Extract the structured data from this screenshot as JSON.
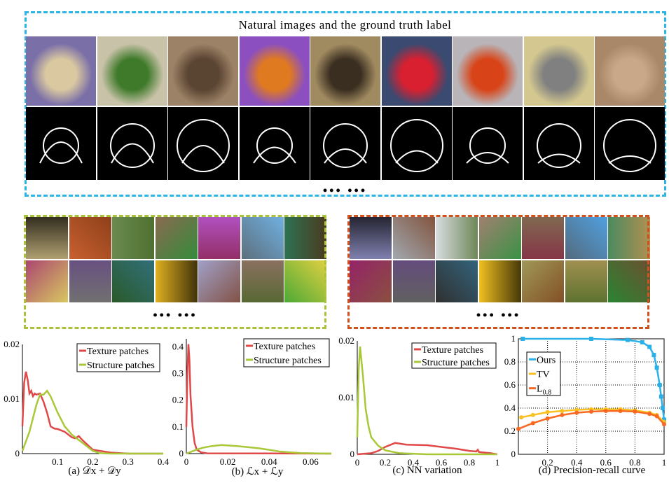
{
  "top_panel": {
    "title": "Natural images and the ground truth label",
    "border_color": "#2bb5e6",
    "ellipsis": "••• •••",
    "image_colors": [
      [
        "#7b6fa8",
        "#d9c8a0"
      ],
      [
        "#c8c2a8",
        "#3f7a2a"
      ],
      [
        "#9c8266",
        "#5a4432"
      ],
      [
        "#8b4fc0",
        "#e07a20"
      ],
      [
        "#a08a60",
        "#3a2e20"
      ],
      [
        "#3a4a70",
        "#d82030"
      ],
      [
        "#b8b4b8",
        "#d84418"
      ],
      [
        "#d4c890",
        "#808080"
      ],
      [
        "#a88868",
        "#c8a888"
      ]
    ]
  },
  "texture_panel": {
    "border_color": "#a9c23a",
    "ellipsis": "••• •••",
    "patch_colors": [
      "#b0a070",
      "#c86030",
      "#6a8a50",
      "#8a6a50",
      "#b050c0",
      "#70b0e0",
      "#4a3a20",
      "#d8c860",
      "#707070",
      "#2a5a2a",
      "#e0b020",
      "#a0a0c8",
      "#8a7060",
      "#e0d040"
    ]
  },
  "structure_panel": {
    "border_color": "#d2501c",
    "ellipsis": "••• •••",
    "patch_colors": [
      "#8080b0",
      "#a0a8b0",
      "#d8dce0",
      "#a08070",
      "#806850",
      "#50a0e0",
      "#b09050",
      "#8a5040",
      "#606060",
      "#303030",
      "#f0c020",
      "#a09858",
      "#a09050",
      "#6a5030"
    ]
  },
  "charts": [
    {
      "caption": "(a) 𝒟x + 𝒟y",
      "type": "line",
      "xlim": [
        0,
        0.4
      ],
      "ylim": [
        0,
        0.02
      ],
      "xticks": [
        "0.1",
        "0.2",
        "0.3",
        "0.4"
      ],
      "yticks": [
        "0",
        "0.01",
        "0.02"
      ],
      "series": [
        {
          "name": "Texture patches",
          "color": "#e04848",
          "x": [
            0,
            0.005,
            0.01,
            0.015,
            0.02,
            0.025,
            0.03,
            0.035,
            0.04,
            0.05,
            0.06,
            0.07,
            0.08,
            0.09,
            0.1,
            0.12,
            0.14,
            0.15,
            0.16,
            0.17,
            0.2,
            0.25,
            0.3,
            0.4
          ],
          "y": [
            0.005,
            0.013,
            0.015,
            0.0135,
            0.011,
            0.0115,
            0.0105,
            0.011,
            0.0108,
            0.011,
            0.0095,
            0.0075,
            0.005,
            0.0046,
            0.0045,
            0.004,
            0.003,
            0.0028,
            0.0032,
            0.0025,
            0.0007,
            0.0002,
            0,
            0
          ]
        },
        {
          "name": "Structure patches",
          "color": "#a8c838",
          "x": [
            0,
            0.02,
            0.04,
            0.05,
            0.06,
            0.07,
            0.08,
            0.1,
            0.12,
            0.14,
            0.16,
            0.18,
            0.2,
            0.22,
            0.25,
            0.4
          ],
          "y": [
            0.0005,
            0.004,
            0.009,
            0.0108,
            0.0108,
            0.0115,
            0.0105,
            0.0075,
            0.005,
            0.0035,
            0.0025,
            0.0015,
            0.0005,
            0.0001,
            0,
            0
          ]
        }
      ]
    },
    {
      "caption": "(b) ℒx + ℒy",
      "type": "line",
      "xlim": [
        0,
        0.07
      ],
      "ylim": [
        0,
        0.43
      ],
      "xticks": [
        "0",
        "0.02",
        "0.04",
        "0.06"
      ],
      "yticks": [
        "0",
        "0.1",
        "0.2",
        "0.3",
        "0.4"
      ],
      "series": [
        {
          "name": "Texture patches",
          "color": "#e04848",
          "x": [
            0,
            0.0005,
            0.001,
            0.0015,
            0.002,
            0.003,
            0.004,
            0.005,
            0.007,
            0.01,
            0.07
          ],
          "y": [
            0.1,
            0.3,
            0.41,
            0.35,
            0.22,
            0.1,
            0.04,
            0.015,
            0.005,
            0.001,
            0
          ]
        },
        {
          "name": "Structure patches",
          "color": "#a8c838",
          "x": [
            0,
            0.005,
            0.008,
            0.012,
            0.017,
            0.025,
            0.035,
            0.045,
            0.055,
            0.07
          ],
          "y": [
            0,
            0.015,
            0.022,
            0.028,
            0.032,
            0.028,
            0.02,
            0.008,
            0.002,
            0
          ]
        }
      ]
    },
    {
      "caption": "(c) NN variation",
      "type": "line",
      "xlim": [
        0,
        1
      ],
      "ylim": [
        0,
        0.02
      ],
      "xticks": [
        "0",
        "0.2",
        "0.4",
        "0.6",
        "0.8",
        "1"
      ],
      "yticks": [
        "0",
        "0.01",
        "0.02"
      ],
      "series": [
        {
          "name": "Texture patches",
          "color": "#e04848",
          "x": [
            0,
            0.1,
            0.15,
            0.2,
            0.27,
            0.3,
            0.35,
            0.5,
            0.6,
            0.7,
            0.8,
            0.85,
            0.86,
            0.87,
            0.95,
            1
          ],
          "y": [
            0,
            0.0002,
            0.0006,
            0.0013,
            0.002,
            0.0019,
            0.0017,
            0.0016,
            0.0013,
            0.001,
            0.0006,
            0.0005,
            0.0008,
            0.0004,
            0.0002,
            0
          ]
        },
        {
          "name": "Structure patches",
          "color": "#a8c838",
          "x": [
            0,
            0.01,
            0.02,
            0.04,
            0.06,
            0.08,
            0.1,
            0.15,
            0.2,
            0.3,
            0.5,
            1
          ],
          "y": [
            0.003,
            0.015,
            0.019,
            0.014,
            0.008,
            0.005,
            0.003,
            0.0015,
            0.0007,
            0.0002,
            0,
            0
          ]
        }
      ]
    },
    {
      "caption": "(d) Precision-recall curve",
      "type": "line",
      "xlim": [
        0,
        1
      ],
      "ylim": [
        0,
        1
      ],
      "grid": true,
      "xticks": [
        "0.2",
        "0.4",
        "0.6",
        "0.8",
        "1"
      ],
      "yticks": [
        "0",
        "0.2",
        "0.4",
        "0.6",
        "0.8",
        "1"
      ],
      "series": [
        {
          "name": "Ours",
          "color": "#2ab0e8",
          "marker": "square",
          "x": [
            0.03,
            0.5,
            0.75,
            0.85,
            0.9,
            0.93,
            0.95,
            0.97,
            0.98,
            0.99,
            1
          ],
          "y": [
            1,
            1,
            0.99,
            0.97,
            0.93,
            0.86,
            0.75,
            0.6,
            0.5,
            0.4,
            0.3
          ]
        },
        {
          "name": "TV",
          "color": "#f8c020",
          "marker": "star",
          "x": [
            0.02,
            0.1,
            0.2,
            0.3,
            0.4,
            0.5,
            0.6,
            0.7,
            0.8,
            0.9,
            0.95,
            1
          ],
          "y": [
            0.32,
            0.34,
            0.365,
            0.375,
            0.385,
            0.39,
            0.39,
            0.39,
            0.38,
            0.36,
            0.34,
            0.28
          ]
        },
        {
          "name": "L",
          "sub": "0.8",
          "color": "#f86820",
          "marker": "circle",
          "x": [
            0,
            0.1,
            0.2,
            0.3,
            0.4,
            0.5,
            0.6,
            0.7,
            0.8,
            0.9,
            0.95,
            1
          ],
          "y": [
            0.22,
            0.27,
            0.31,
            0.34,
            0.36,
            0.37,
            0.375,
            0.375,
            0.37,
            0.35,
            0.33,
            0.26
          ]
        }
      ]
    }
  ]
}
